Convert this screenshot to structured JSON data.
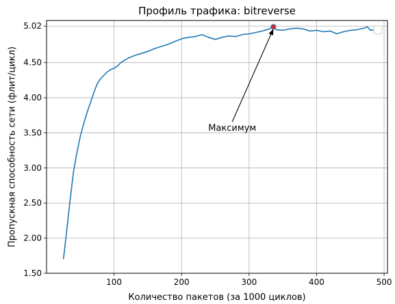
{
  "chart_data": {
    "type": "line",
    "title": "Профиль трафика: bitreverse",
    "xlabel": "Количество пакетов (за 1000 циклов)",
    "ylabel": "Пропускная способность сети (флит/цикл)",
    "xlim": [
      0,
      505
    ],
    "ylim": [
      1.5,
      5.1
    ],
    "xticks": [
      100,
      200,
      300,
      400,
      500
    ],
    "yticks": [
      1.5,
      2.0,
      2.5,
      3.0,
      3.5,
      4.0,
      4.5,
      5.02
    ],
    "ytick_labels": [
      "1.50",
      "2.00",
      "2.50",
      "3.00",
      "3.50",
      "4.00",
      "4.50",
      "5.02"
    ],
    "grid": true,
    "legend": "top-right, empty",
    "colors": {
      "line": "#1f77b4",
      "max_marker": "#d62728"
    },
    "series": [
      {
        "x": [
          25,
          30,
          35,
          40,
          45,
          50,
          55,
          60,
          65,
          70,
          75,
          80,
          85,
          90,
          95,
          100,
          105,
          110,
          115,
          120,
          130,
          140,
          150,
          160,
          170,
          180,
          190,
          200,
          210,
          220,
          230,
          240,
          250,
          260,
          270,
          280,
          290,
          300,
          310,
          320,
          330,
          336,
          340,
          350,
          360,
          370,
          380,
          390,
          400,
          410,
          420,
          430,
          440,
          450,
          460,
          470,
          475,
          480,
          485
        ],
        "y": [
          1.7,
          2.12,
          2.55,
          2.95,
          3.22,
          3.45,
          3.63,
          3.79,
          3.93,
          4.07,
          4.2,
          4.27,
          4.32,
          4.37,
          4.4,
          4.42,
          4.45,
          4.5,
          4.53,
          4.56,
          4.6,
          4.63,
          4.66,
          4.7,
          4.73,
          4.76,
          4.8,
          4.84,
          4.86,
          4.87,
          4.9,
          4.86,
          4.83,
          4.86,
          4.88,
          4.87,
          4.9,
          4.91,
          4.93,
          4.95,
          4.98,
          5.01,
          4.97,
          4.96,
          4.98,
          4.99,
          4.98,
          4.95,
          4.96,
          4.94,
          4.95,
          4.91,
          4.94,
          4.96,
          4.97,
          4.99,
          5.01,
          4.96,
          4.97
        ]
      }
    ],
    "maximum": {
      "x": 336,
      "y": 5.01
    },
    "annotation": {
      "text": "Максимум",
      "text_x": 275,
      "text_y": 3.53
    }
  }
}
